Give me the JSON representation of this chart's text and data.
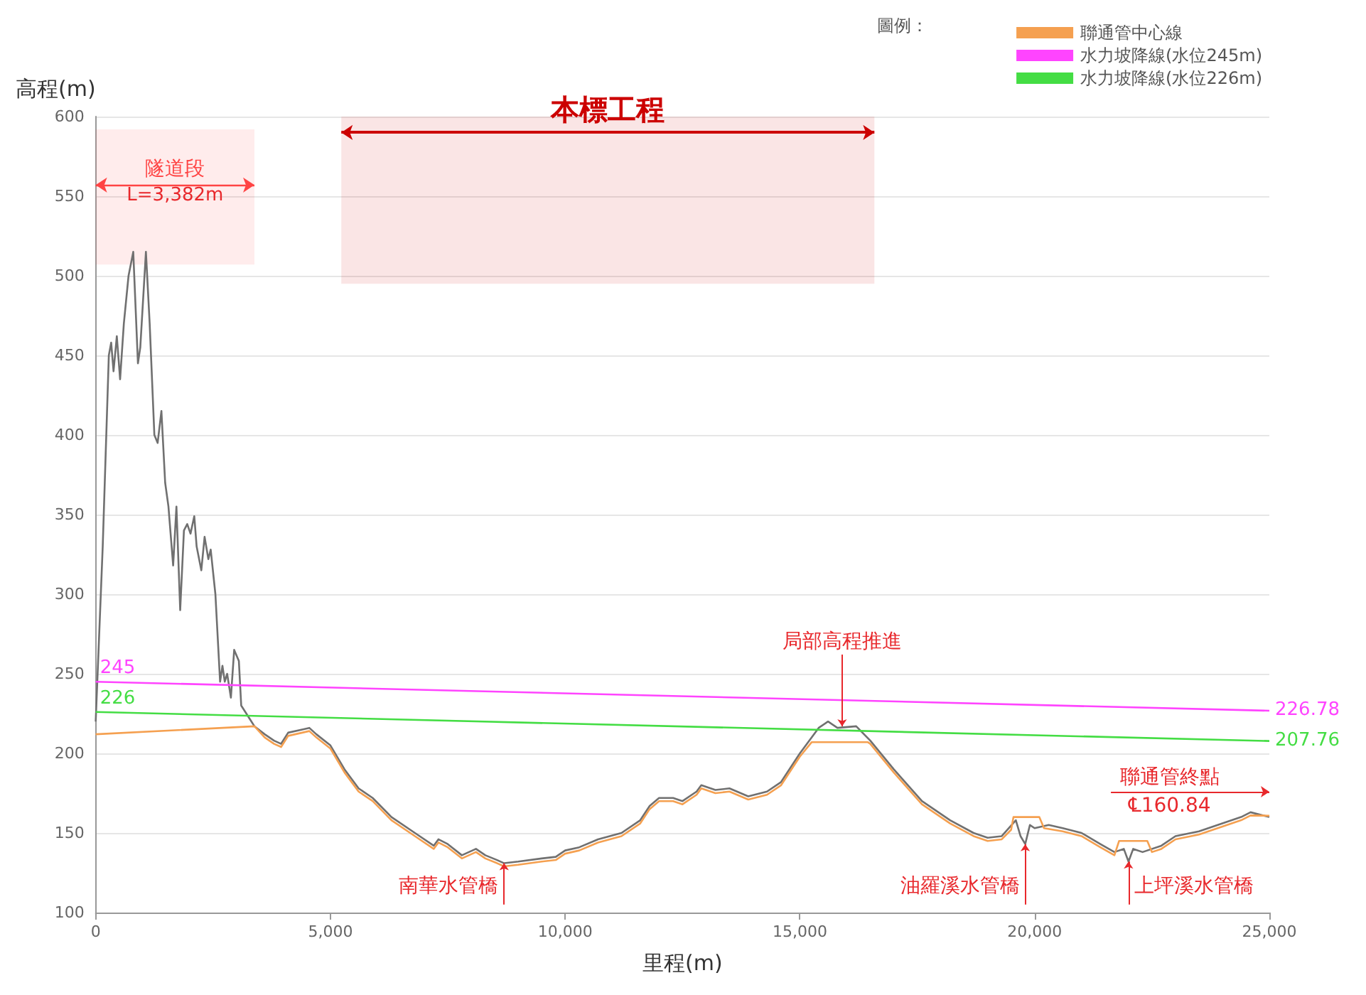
{
  "chart_data": {
    "type": "line",
    "xlabel": "里程(m)",
    "ylabel": "高程(m)",
    "legend_title": "圖例：",
    "legend": "top right",
    "grid": "y",
    "marker": "none",
    "line_style": "solid",
    "xlim": [
      0,
      25000
    ],
    "xticks": [
      0,
      {
        "value": 5000,
        "label": "5,000"
      },
      {
        "value": 10000,
        "label": "10,000"
      },
      {
        "value": 15000,
        "label": "15,000"
      },
      {
        "value": 20000,
        "label": "20,000"
      },
      {
        "value": 25000,
        "label": "25,000"
      }
    ],
    "ylim": [
      100,
      600
    ],
    "yticks": [
      100,
      150,
      200,
      250,
      300,
      350,
      400,
      450,
      500,
      550,
      600
    ],
    "series": [
      {
        "color": "#707070",
        "x": [
          0,
          150,
          280,
          330,
          380,
          450,
          520,
          600,
          700,
          800,
          900,
          950,
          1070,
          1150,
          1250,
          1320,
          1400,
          1480,
          1550,
          1650,
          1720,
          1800,
          1880,
          1950,
          2020,
          2100,
          2150,
          2250,
          2320,
          2400,
          2450,
          2550,
          2650,
          2700,
          2750,
          2800,
          2880,
          2950,
          3050,
          3100,
          3382,
          3600,
          3800,
          3950,
          4100,
          4400,
          4550,
          4700,
          5000,
          5300,
          5600,
          5900,
          6300,
          6800,
          7200,
          7300,
          7500,
          7800,
          8100,
          8300,
          8550,
          8700,
          9000,
          9500,
          9800,
          10000,
          10300,
          10700,
          11200,
          11600,
          11800,
          12000,
          12300,
          12500,
          12800,
          12900,
          13200,
          13500,
          13900,
          14300,
          14600,
          15000,
          15400,
          15600,
          15800,
          16200,
          16500,
          17000,
          17600,
          18200,
          18700,
          19000,
          19300,
          19600,
          19700,
          19800,
          19900,
          20000,
          20300,
          20600,
          21000,
          21400,
          21700,
          21900,
          22000,
          22100,
          22300,
          22700,
          23000,
          23500,
          24000,
          24400,
          24600,
          25000
        ],
        "values": [
          220,
          330,
          450,
          458,
          440,
          462,
          435,
          470,
          500,
          515,
          445,
          455,
          515,
          470,
          400,
          395,
          415,
          370,
          355,
          318,
          355,
          290,
          340,
          344,
          338,
          349,
          330,
          315,
          336,
          322,
          328,
          300,
          245,
          255,
          245,
          250,
          235,
          265,
          258,
          230,
          217,
          212,
          208,
          206,
          213,
          215,
          216,
          212,
          205,
          190,
          178,
          172,
          160,
          150,
          142,
          146,
          143,
          136,
          140,
          136,
          133,
          131,
          132,
          134,
          135,
          139,
          141,
          146,
          150,
          158,
          167,
          172,
          172,
          170,
          176,
          180,
          177,
          178,
          173,
          176,
          182,
          200,
          216,
          220,
          216,
          217,
          208,
          190,
          170,
          158,
          150,
          147,
          148,
          158,
          148,
          143,
          155,
          153,
          155,
          153,
          150,
          143,
          138,
          140,
          132,
          140,
          138,
          142,
          148,
          151,
          156,
          160,
          163,
          160
        ]
      },
      {
        "name": "聯通管中心線",
        "color": "#f5a050",
        "x": [
          0,
          3382,
          3600,
          3800,
          3950,
          4100,
          4400,
          4550,
          4700,
          5000,
          5300,
          5600,
          5900,
          6300,
          6800,
          7200,
          7300,
          7500,
          7800,
          8100,
          8300,
          8550,
          8700,
          9000,
          9500,
          9800,
          10000,
          10300,
          10700,
          11200,
          11600,
          11800,
          12000,
          12300,
          12500,
          12800,
          12900,
          13200,
          13500,
          13900,
          14300,
          14600,
          15000,
          15250,
          16450,
          16500,
          17000,
          17600,
          18200,
          18700,
          19000,
          19300,
          19500,
          19550,
          20100,
          20200,
          20600,
          21000,
          21400,
          21700,
          21800,
          22400,
          22500,
          22700,
          23000,
          23500,
          24000,
          24400,
          24600,
          25000
        ],
        "values": [
          212,
          217,
          210,
          206,
          204,
          211,
          213,
          214,
          210,
          203,
          188,
          176,
          170,
          158,
          148,
          140,
          144,
          141,
          134,
          138,
          134,
          131,
          129,
          130,
          132,
          133,
          137,
          139,
          144,
          148,
          156,
          165,
          170,
          170,
          168,
          174,
          178,
          175,
          176,
          171,
          174,
          180,
          198,
          207,
          207,
          206,
          188,
          168,
          156,
          148,
          145,
          146,
          152,
          160,
          160,
          153,
          151,
          148,
          141,
          136,
          145,
          145,
          138,
          140,
          146,
          149,
          154,
          158,
          161,
          160.84
        ]
      },
      {
        "name": "水力坡降線(水位245m)",
        "color": "#ff44ff",
        "x": [
          0,
          25000
        ],
        "values": [
          245,
          226.78
        ],
        "value_labels": [
          "245",
          "226.78"
        ]
      },
      {
        "name": "水力坡降線(水位226m)",
        "color": "#44dd44",
        "x": [
          0,
          25000
        ],
        "values": [
          226,
          207.76
        ],
        "value_labels": [
          "226",
          "207.76"
        ]
      }
    ],
    "bands": [
      {
        "axis": "x",
        "from": 0,
        "to": 3382,
        "label": "隧道段",
        "color": "#ff4444"
      },
      {
        "axis": "x",
        "from": 5232,
        "to": 16587,
        "label": "本標工程",
        "color": "#cc0000"
      }
    ],
    "annotations": [
      "L=3,382m",
      {
        "text": "南華水管橋",
        "x": 8700,
        "y": 131
      },
      {
        "text": "局部高程推進",
        "x": 15900,
        "y": 217
      },
      {
        "text": "油羅溪水管橋",
        "x": 19800,
        "y": 143
      },
      {
        "text": "上坪溪水管橋",
        "x": 22000,
        "y": 132
      },
      {
        "text": "聯通管終點",
        "x": 25000,
        "y": 160.84
      },
      {
        "text": "℄160.84",
        "x": 25000,
        "y": 160.84
      }
    ]
  }
}
